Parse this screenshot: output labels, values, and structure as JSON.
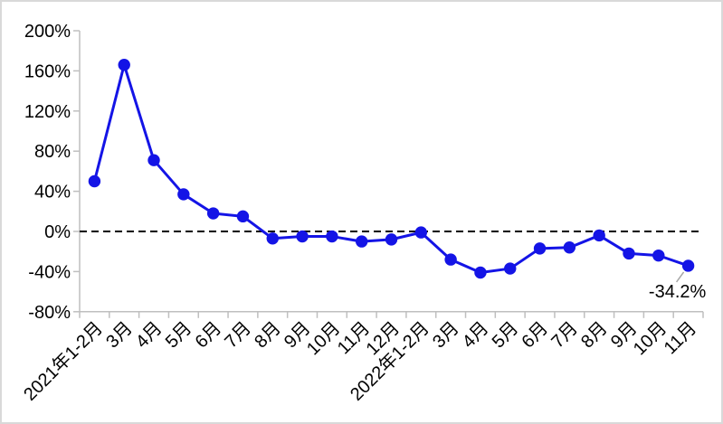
{
  "chart_data": {
    "type": "line",
    "categories": [
      "2021年1-2月",
      "3月",
      "4月",
      "5月",
      "6月",
      "7月",
      "8月",
      "9月",
      "10月",
      "11月",
      "12月",
      "2022年1-2月",
      "3月",
      "4月",
      "5月",
      "6月",
      "7月",
      "8月",
      "9月",
      "10月",
      "11月"
    ],
    "values": [
      50,
      166,
      71,
      37,
      18,
      15,
      -7,
      -5,
      -5,
      -10,
      -8,
      -1,
      -28,
      -41,
      -37,
      -17,
      -16,
      -4,
      -22,
      -24,
      -34.2
    ],
    "ylim": [
      -80,
      200
    ],
    "ytick_step": 40,
    "ytick_labels": [
      "200%",
      "160%",
      "120%",
      "80%",
      "40%",
      "0%",
      "-40%",
      "-80%"
    ],
    "grid": false,
    "legend": "none",
    "x_label_rotation": -45,
    "zero_line": {
      "style": "dashed",
      "color": "#000000"
    },
    "annotation": {
      "text": "-34.2%",
      "target_index": 20,
      "leader_color": "#a6a6a6"
    },
    "colors": {
      "line": "#1414e6",
      "marker": "#1414e6",
      "axis": "#bfbfbf",
      "text": "#000000",
      "border": "#d9d9d9",
      "background": "#ffffff"
    }
  }
}
